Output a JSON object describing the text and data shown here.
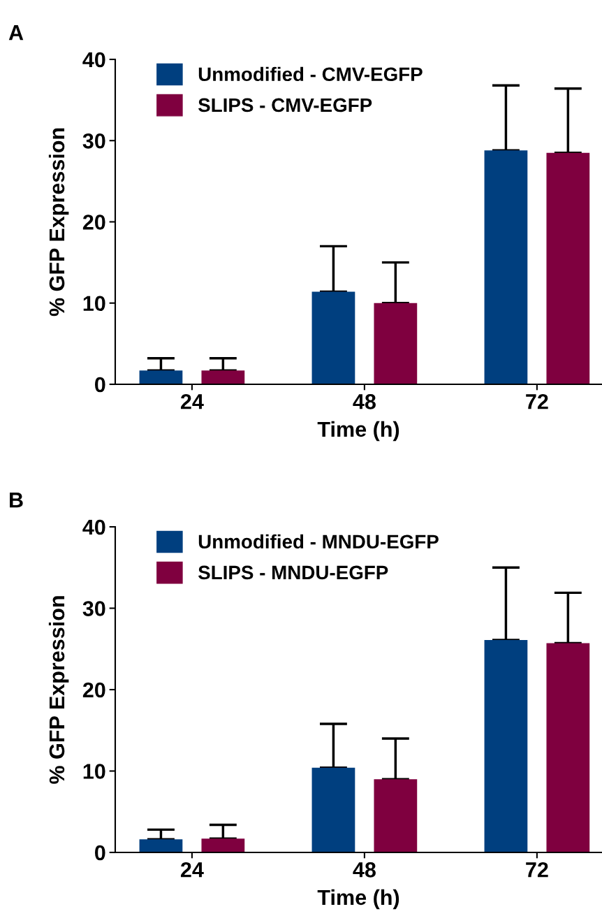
{
  "chart_data": [
    {
      "type": "bar",
      "title": "A",
      "xlabel": "Time (h)",
      "ylabel": "% GFP Expression",
      "categories": [
        "24",
        "48",
        "72"
      ],
      "ylim": [
        0,
        40
      ],
      "yticks": [
        0,
        10,
        20,
        30,
        40
      ],
      "grid": false,
      "legend": "top left",
      "series": [
        {
          "name": "Unmodified - CMV-EGFP",
          "color": "#003f7f",
          "values": [
            1.7,
            11.4,
            28.8
          ],
          "errors": [
            [
              1.7,
              3.2
            ],
            [
              11.4,
              17.0
            ],
            [
              28.8,
              36.8
            ]
          ]
        },
        {
          "name": "SLIPS - CMV-EGFP",
          "color": "#7f003f",
          "values": [
            1.7,
            10.0,
            28.5
          ],
          "errors": [
            [
              1.7,
              3.2
            ],
            [
              10.0,
              15.0
            ],
            [
              28.5,
              36.4
            ]
          ]
        }
      ]
    },
    {
      "type": "bar",
      "title": "B",
      "xlabel": "Time (h)",
      "ylabel": "% GFP Expression",
      "categories": [
        "24",
        "48",
        "72"
      ],
      "ylim": [
        0,
        40
      ],
      "yticks": [
        0,
        10,
        20,
        30,
        40
      ],
      "grid": false,
      "legend": "top left",
      "series": [
        {
          "name": "Unmodified - MNDU-EGFP",
          "color": "#003f7f",
          "values": [
            1.6,
            10.4,
            26.1
          ],
          "errors": [
            [
              1.6,
              2.8
            ],
            [
              10.4,
              15.8
            ],
            [
              26.1,
              35.0
            ]
          ]
        },
        {
          "name": "SLIPS - MNDU-EGFP",
          "color": "#7f003f",
          "values": [
            1.7,
            9.0,
            25.7
          ],
          "errors": [
            [
              1.7,
              3.4
            ],
            [
              9.0,
              14.0
            ],
            [
              25.7,
              31.9
            ]
          ]
        }
      ]
    }
  ]
}
